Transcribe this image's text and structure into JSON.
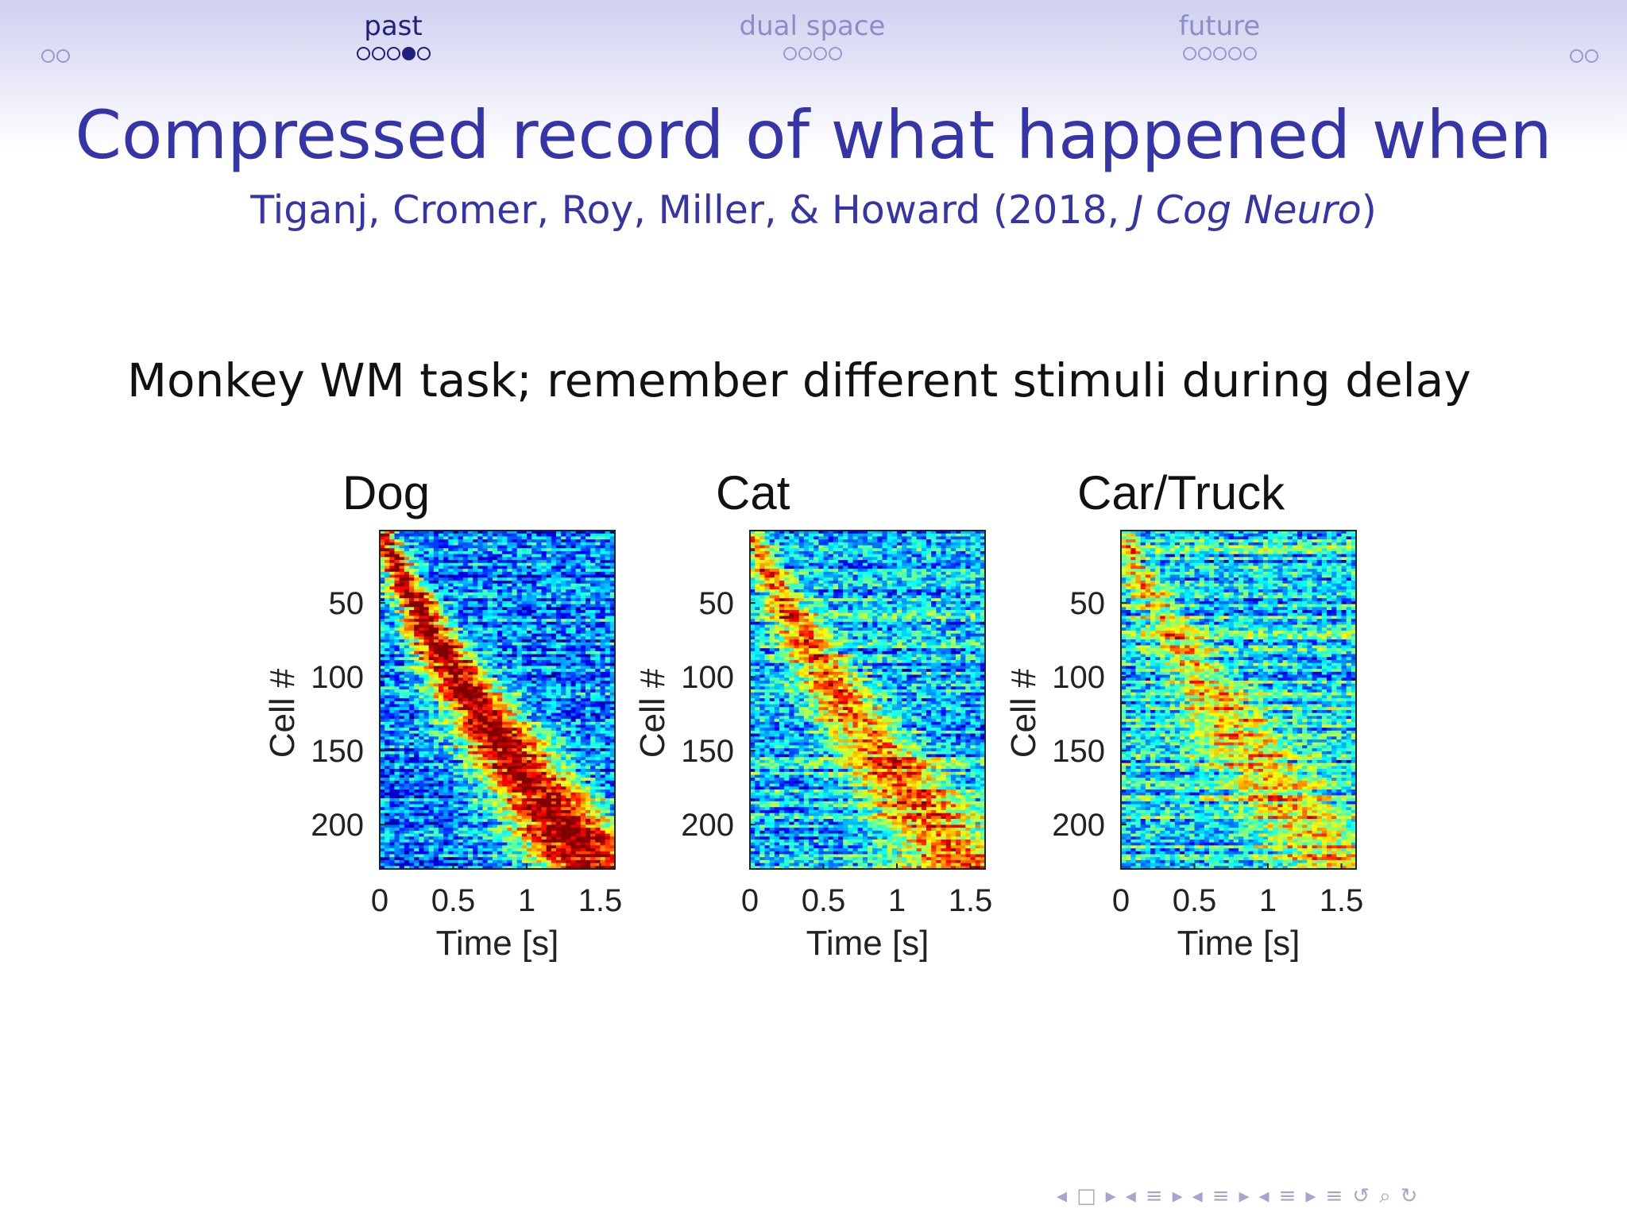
{
  "nav": {
    "left_dots": 2,
    "right_dots": 2,
    "sections": [
      {
        "name": "past",
        "dots": 5,
        "current_index": 3,
        "active": true
      },
      {
        "name": "dual space",
        "dots": 4,
        "current_index": -1,
        "active": false
      },
      {
        "name": "future",
        "dots": 5,
        "current_index": -1,
        "active": false
      }
    ]
  },
  "slide": {
    "title": "Compressed record of what happened when",
    "citation_authors": "Tiganj, Cromer, Roy, Miller, & Howard (2018, ",
    "citation_journal": "J Cog Neuro",
    "citation_close": ")",
    "body": "Monkey WM task; remember different stimuli during delay"
  },
  "colors": {
    "title": "#3534a8",
    "nav_active": "#20207e",
    "nav_inactive": "#8d8dc6",
    "heatmap_colormap": "jet"
  },
  "chart_data": [
    {
      "type": "heatmap",
      "title": "Dog",
      "xlabel": "Time [s]",
      "ylabel": "Cell #",
      "xlim": [
        0,
        1.6
      ],
      "ylim": [
        1,
        230
      ],
      "xticks": [
        0,
        0.5,
        1,
        1.5
      ],
      "xtick_labels": [
        "0",
        "0.5",
        "1",
        "1.5"
      ],
      "yticks": [
        50,
        100,
        150,
        200
      ],
      "ytick_labels": [
        "50",
        "100",
        "150",
        "200"
      ],
      "colormap": "jet",
      "pattern": "sequential time cells; peak time increases with cell index; sharp"
    },
    {
      "type": "heatmap",
      "title": "Cat",
      "xlabel": "Time [s]",
      "ylabel": "Cell #",
      "xlim": [
        0,
        1.6
      ],
      "ylim": [
        1,
        230
      ],
      "xticks": [
        0,
        0.5,
        1,
        1.5
      ],
      "xtick_labels": [
        "0",
        "0.5",
        "1",
        "1.5"
      ],
      "yticks": [
        50,
        100,
        150,
        200
      ],
      "ytick_labels": [
        "50",
        "100",
        "150",
        "200"
      ],
      "colormap": "jet",
      "pattern": "weaker sequential structure"
    },
    {
      "type": "heatmap",
      "title": "Car/Truck",
      "xlabel": "Time [s]",
      "ylabel": "Cell #",
      "xlim": [
        0,
        1.6
      ],
      "ylim": [
        1,
        230
      ],
      "xticks": [
        0,
        0.5,
        1,
        1.5
      ],
      "xtick_labels": [
        "0",
        "0.5",
        "1",
        "1.5"
      ],
      "yticks": [
        50,
        100,
        150,
        200
      ],
      "ytick_labels": [
        "50",
        "100",
        "150",
        "200"
      ],
      "colormap": "jet",
      "pattern": "weakest sequential structure"
    }
  ],
  "controls": {
    "icons": [
      "arrow-left-icon",
      "frame-icon",
      "arrow-right-icon",
      "arrow-left-icon",
      "subsection-icon",
      "arrow-right-icon",
      "arrow-left-icon",
      "section-icon",
      "arrow-right-icon",
      "arrow-left-icon",
      "slide-icon",
      "arrow-right-icon",
      "align-icon",
      "search-back-icon",
      "search-icon",
      "search-forward-icon"
    ]
  }
}
